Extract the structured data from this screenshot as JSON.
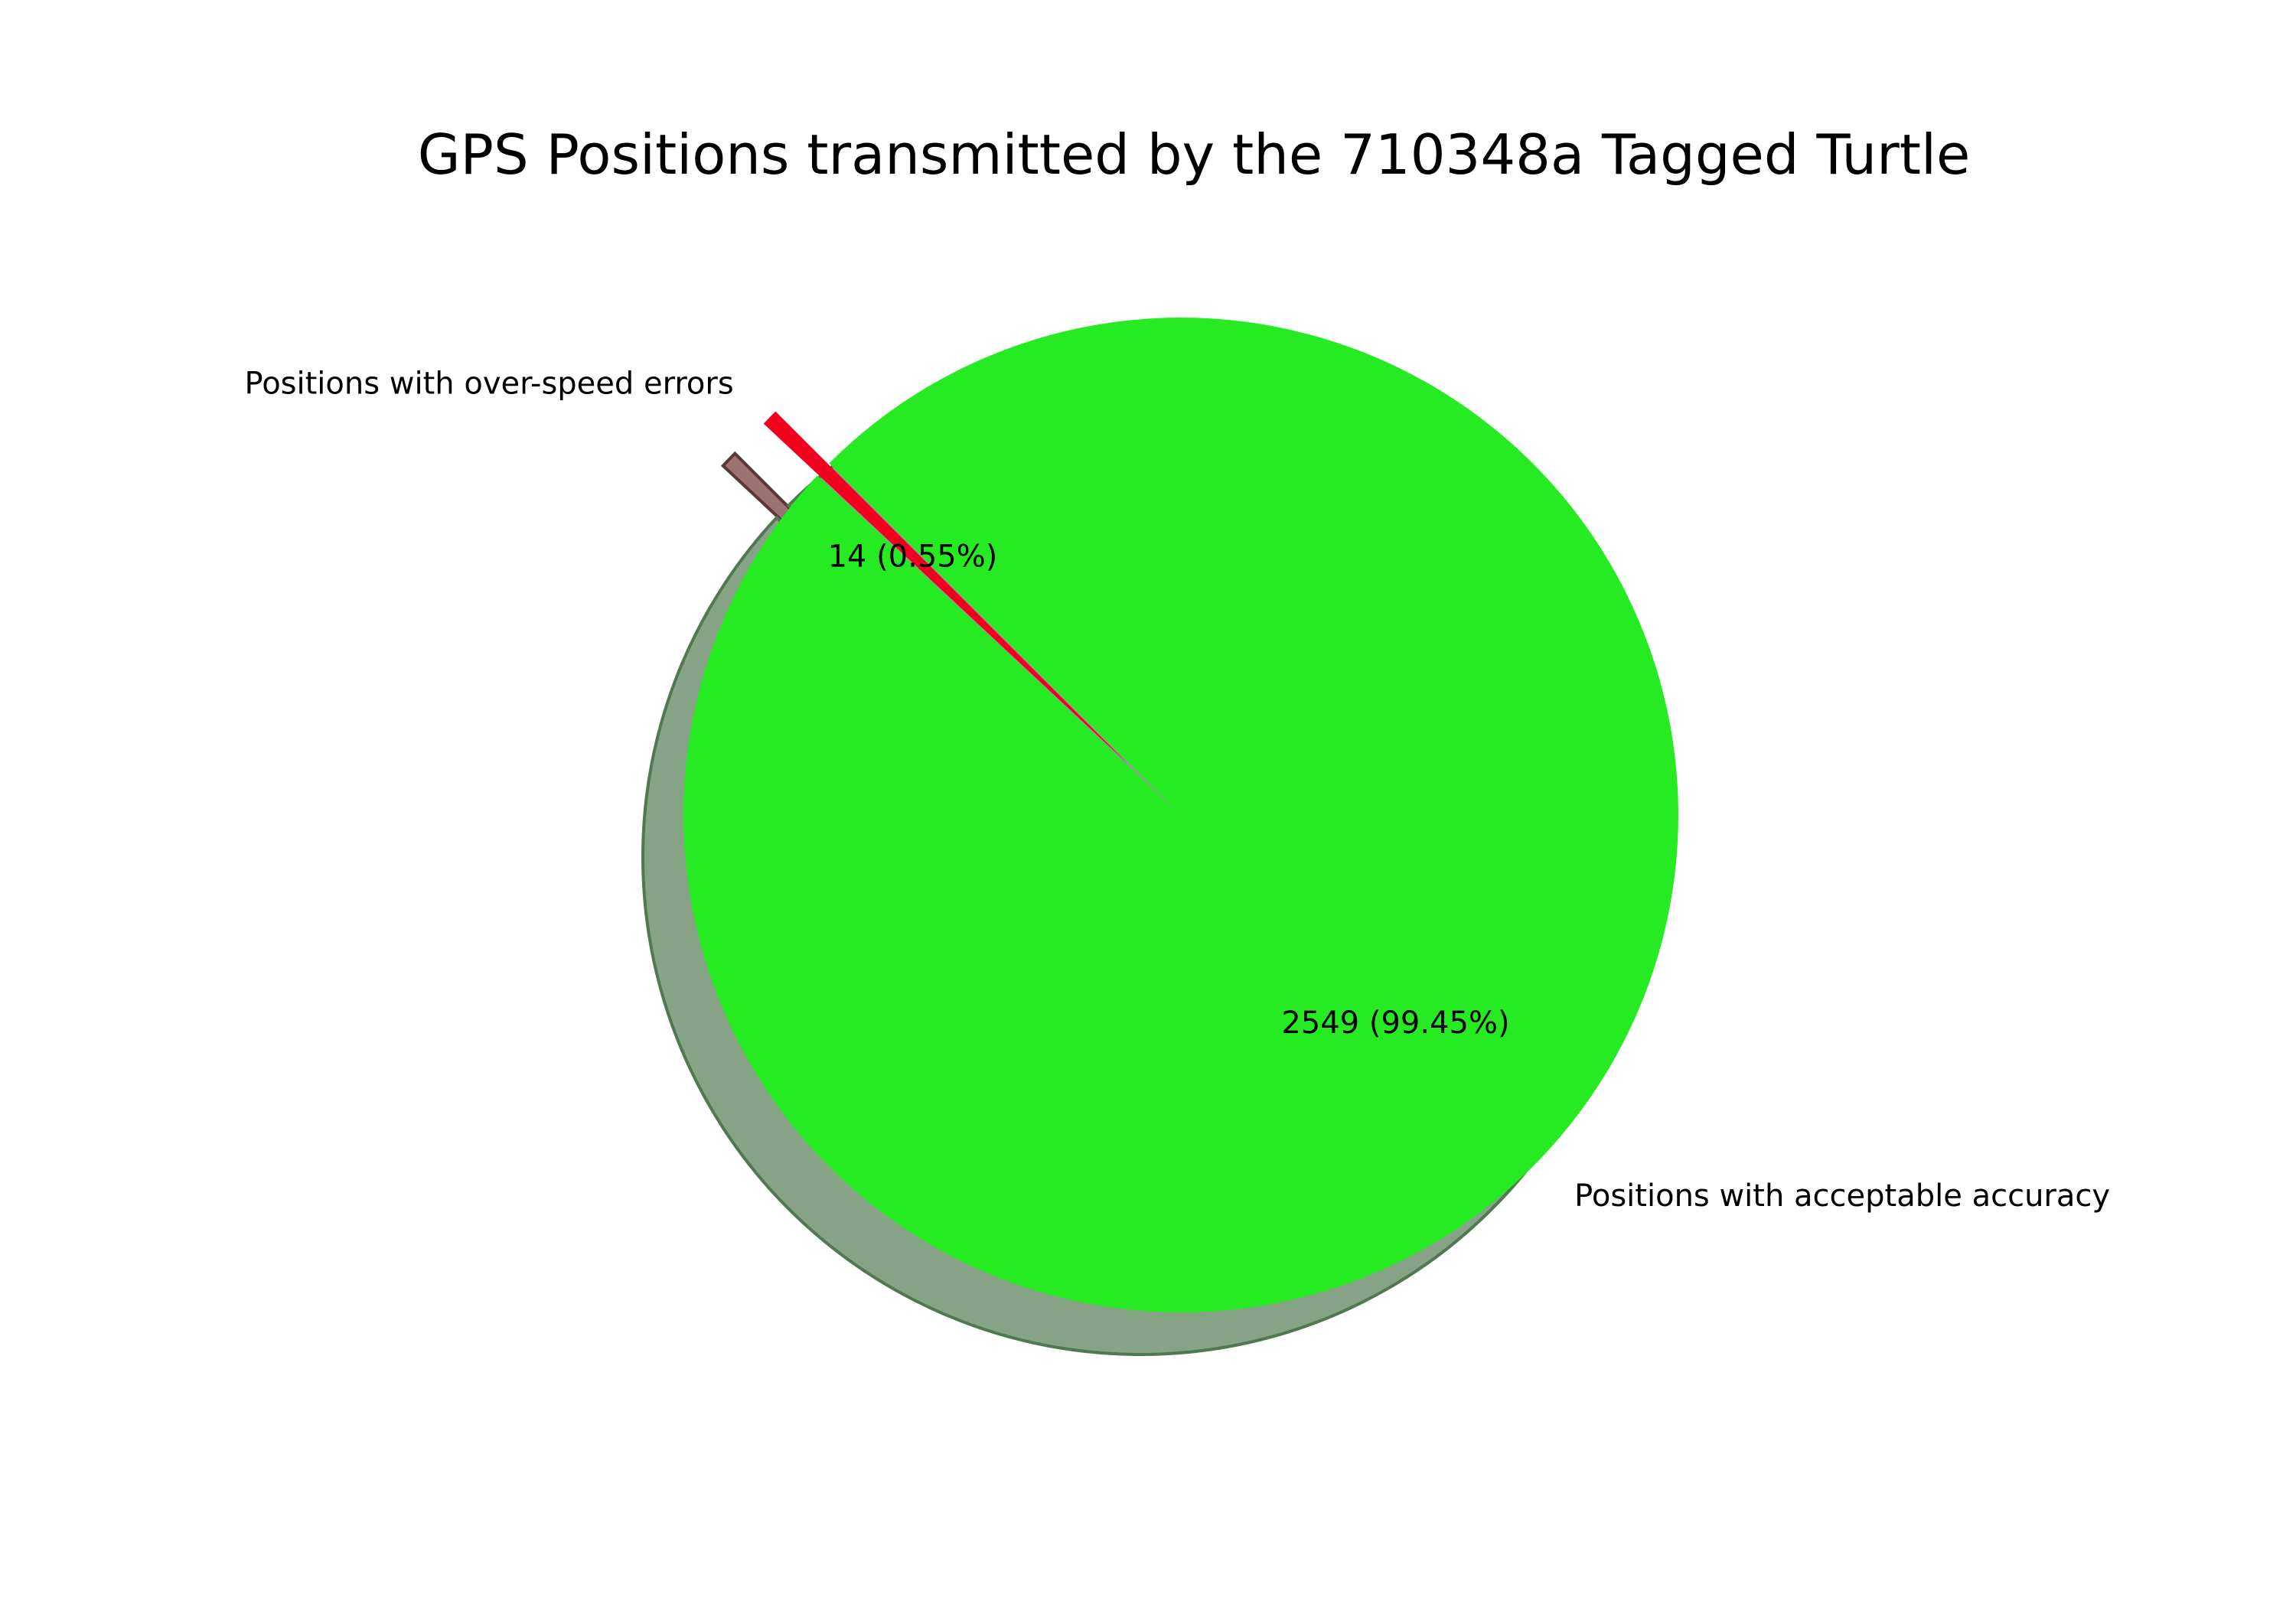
{
  "chart_data": {
    "type": "pie",
    "title": "GPS Positions transmitted by the 710348a Tagged Turtle",
    "shadow": true,
    "start_angle_deg": 135,
    "slices": [
      {
        "label": "Positions with over-speed errors",
        "value": 14,
        "percent_label": "14 (0.55%)",
        "color": "#f0001e",
        "exploded": true
      },
      {
        "label": "Positions with acceptable accuracy",
        "value": 2549,
        "percent_label": "2549 (99.45%)",
        "color": "#26eb22",
        "exploded": false
      }
    ]
  }
}
